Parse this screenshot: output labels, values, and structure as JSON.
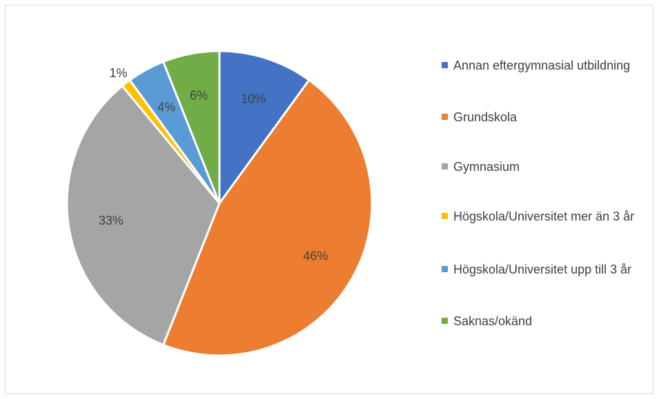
{
  "chart_data": {
    "type": "pie",
    "title": "",
    "slices": [
      {
        "label": "Annan eftergymnasial utbildning",
        "value": 10,
        "pct_label": "10%",
        "color": "#4472C4"
      },
      {
        "label": "Grundskola",
        "value": 46,
        "pct_label": "46%",
        "color": "#ED7D31"
      },
      {
        "label": "Gymnasium",
        "value": 33,
        "pct_label": "33%",
        "color": "#A5A5A5"
      },
      {
        "label": "Högskola/Universitet mer än 3 år",
        "value": 1,
        "pct_label": "1%",
        "color": "#FFC000"
      },
      {
        "label": "Högskola/Universitet upp till 3 år",
        "value": 4,
        "pct_label": "4%",
        "color": "#5B9BD5"
      },
      {
        "label": "Saknas/okänd",
        "value": 6,
        "pct_label": "6%",
        "color": "#70AD47"
      }
    ],
    "legend_position": "right"
  }
}
